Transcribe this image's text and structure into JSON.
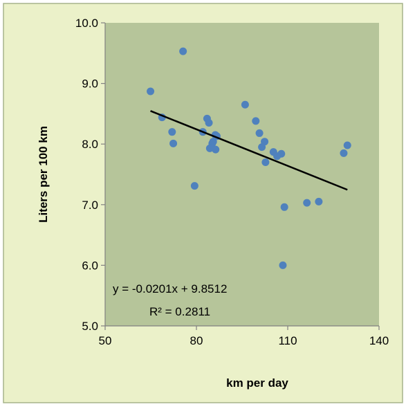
{
  "chart_data": {
    "type": "scatter",
    "xlabel": "km per day",
    "ylabel": "Liters per 100 km",
    "xlim": [
      50,
      140
    ],
    "ylim": [
      5.0,
      10.0
    ],
    "x_ticks": [
      "50",
      "80",
      "110",
      "140"
    ],
    "x_tick_values": [
      50,
      80,
      110,
      140
    ],
    "y_ticks": [
      "5.0",
      "6.0",
      "7.0",
      "8.0",
      "9.0",
      "10.0"
    ],
    "y_tick_values": [
      5,
      6,
      7,
      8,
      9,
      10
    ],
    "grid": false,
    "legend": "none",
    "colors": {
      "outer_background": "#ebf1c9",
      "outer_border": "#a6b38a",
      "plot_background": "#b6c59a",
      "points": "#4f81bd",
      "trendline": "#000000",
      "axis": "#808080"
    },
    "series": [
      {
        "points": [
          {
            "x": 64.9,
            "y": 8.87
          },
          {
            "x": 68.7,
            "y": 8.44
          },
          {
            "x": 72.0,
            "y": 8.2
          },
          {
            "x": 72.4,
            "y": 8.01
          },
          {
            "x": 75.6,
            "y": 9.53
          },
          {
            "x": 79.4,
            "y": 7.31
          },
          {
            "x": 82.1,
            "y": 8.2
          },
          {
            "x": 83.5,
            "y": 8.42
          },
          {
            "x": 84.1,
            "y": 8.35
          },
          {
            "x": 84.4,
            "y": 7.93
          },
          {
            "x": 85.2,
            "y": 8.01
          },
          {
            "x": 85.5,
            "y": 8.04
          },
          {
            "x": 86.2,
            "y": 8.15
          },
          {
            "x": 86.3,
            "y": 7.91
          },
          {
            "x": 86.7,
            "y": 8.13
          },
          {
            "x": 96.0,
            "y": 8.65
          },
          {
            "x": 99.5,
            "y": 8.38
          },
          {
            "x": 100.7,
            "y": 8.18
          },
          {
            "x": 101.5,
            "y": 7.95
          },
          {
            "x": 102.4,
            "y": 8.04
          },
          {
            "x": 102.7,
            "y": 7.7
          },
          {
            "x": 105.3,
            "y": 7.87
          },
          {
            "x": 106.5,
            "y": 7.8
          },
          {
            "x": 107.9,
            "y": 7.84
          },
          {
            "x": 108.4,
            "y": 6.0
          },
          {
            "x": 108.9,
            "y": 6.96
          },
          {
            "x": 116.3,
            "y": 7.03
          },
          {
            "x": 120.2,
            "y": 7.05
          },
          {
            "x": 128.4,
            "y": 7.85
          },
          {
            "x": 129.6,
            "y": 7.98
          }
        ]
      }
    ],
    "trendline": {
      "type": "linear",
      "slope": -0.0201,
      "intercept": 9.8512,
      "x_range": [
        64.9,
        129.6
      ],
      "equation": "y = -0.0201x + 9.8512",
      "r_squared": "R² = 0.2811"
    }
  }
}
